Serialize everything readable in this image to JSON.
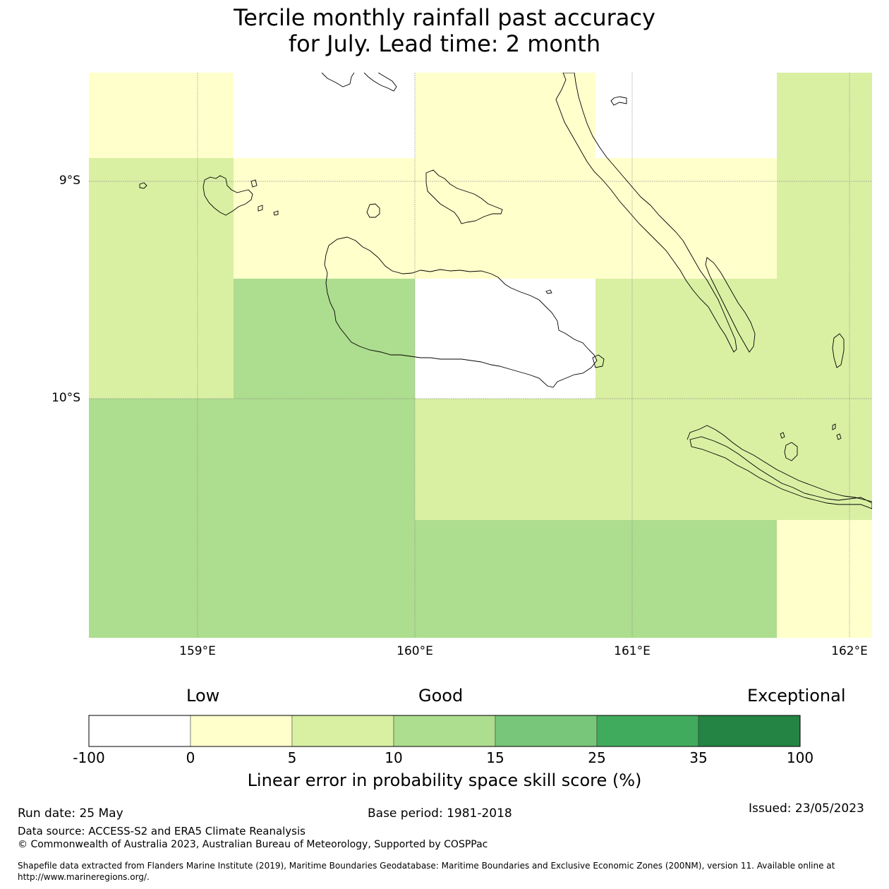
{
  "title_line1": "Tercile monthly rainfall past accuracy",
  "title_line2": "for July. Lead time: 2 month",
  "map": {
    "lat_labels": [
      "9°S",
      "10°S"
    ],
    "lon_labels": [
      "159°E",
      "160°E",
      "161°E",
      "162°E"
    ],
    "category_colors": {
      "-100_0": "#ffffff",
      "0_5": "#ffffcc",
      "5_10": "#d9f0a3",
      "10_15": "#addd8e",
      "15_25": "#78c679",
      "25_35": "#41ab5d",
      "35_100": "#238443"
    }
  },
  "colorbar": {
    "words": [
      "Low",
      "Good",
      "Exceptional"
    ],
    "ticks": [
      "-100",
      "0",
      "5",
      "10",
      "15",
      "25",
      "35",
      "100"
    ],
    "colors": [
      "#ffffff",
      "#ffffcc",
      "#d9f0a3",
      "#addd8e",
      "#78c679",
      "#41ab5d",
      "#238443"
    ],
    "title": "Linear error in probability space skill score (%)"
  },
  "footer": {
    "run_date": "Run date: 25 May",
    "base_period": "Base period: 1981-2018",
    "issued": "Issued: 23/05/2023",
    "data_source": "Data source: ACCESS-S2 and ERA5 Climate Reanalysis",
    "copyright": "© Commonwealth of Australia 2023, Australian Bureau of Meteorology, Supported by COSPPac",
    "shapefile_line1": "Shapefile data extracted from Flanders Marine Institute (2019), Maritime Boundaries Geodatabase: Maritime Boundaries and Exclusive Economic Zones (200NM), version 11. Available online at",
    "shapefile_line2": "http://www.marineregions.org/."
  }
}
